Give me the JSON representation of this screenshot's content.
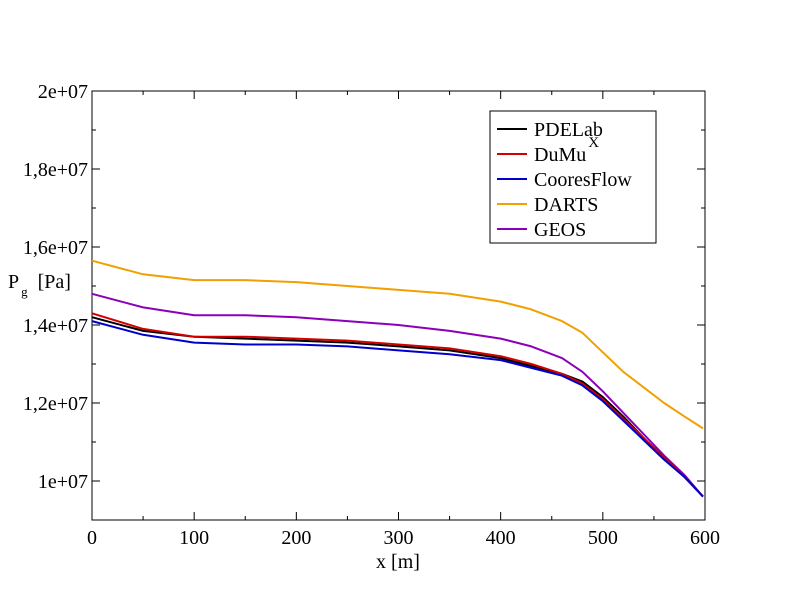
{
  "chart_data": {
    "type": "line",
    "xlabel": "x [m]",
    "ylabel": {
      "main": "P",
      "sub": "g",
      "unit": "[Pa]"
    },
    "xlim": [
      0,
      600
    ],
    "ylim": [
      9000000,
      20000000
    ],
    "xticks": [
      0,
      100,
      200,
      300,
      400,
      500,
      600
    ],
    "xtick_labels": [
      "0",
      "100",
      "200",
      "300",
      "400",
      "500",
      "600"
    ],
    "yticks": [
      10000000,
      12000000,
      14000000,
      16000000,
      18000000,
      20000000
    ],
    "ytick_labels": [
      "1e+07",
      "1,2e+07",
      "1,4e+07",
      "1,6e+07",
      "1,8e+07",
      "2e+07"
    ],
    "grid": false,
    "legend_position": "top-right",
    "series": [
      {
        "name": "PDELab",
        "name_sup": "",
        "color": "#000000",
        "x": [
          0,
          50,
          100,
          150,
          200,
          250,
          300,
          350,
          400,
          430,
          460,
          480,
          500,
          520,
          540,
          560,
          580,
          598
        ],
        "y": [
          14200000,
          13850000,
          13700000,
          13650000,
          13600000,
          13550000,
          13450000,
          13350000,
          13150000,
          12950000,
          12750000,
          12550000,
          12150000,
          11650000,
          11100000,
          10600000,
          10100000,
          9600000
        ]
      },
      {
        "name": "DuMu",
        "name_sup": "X",
        "color": "#d40000",
        "x": [
          0,
          50,
          100,
          150,
          200,
          250,
          300,
          350,
          400,
          430,
          460,
          480,
          500,
          520,
          540,
          560,
          580,
          598
        ],
        "y": [
          14300000,
          13900000,
          13700000,
          13700000,
          13650000,
          13600000,
          13500000,
          13400000,
          13200000,
          13000000,
          12750000,
          12500000,
          12100000,
          11600000,
          11100000,
          10600000,
          10100000,
          9600000
        ]
      },
      {
        "name": "CooresFlow",
        "name_sup": "",
        "color": "#0000cc",
        "x": [
          0,
          50,
          100,
          150,
          200,
          250,
          300,
          350,
          400,
          430,
          460,
          480,
          500,
          520,
          540,
          560,
          580,
          598
        ],
        "y": [
          14100000,
          13750000,
          13550000,
          13500000,
          13500000,
          13450000,
          13350000,
          13250000,
          13100000,
          12900000,
          12700000,
          12450000,
          12050000,
          11550000,
          11050000,
          10550000,
          10100000,
          9600000
        ]
      },
      {
        "name": "DARTS",
        "name_sup": "",
        "color": "#f0a000",
        "x": [
          0,
          50,
          100,
          150,
          200,
          250,
          300,
          350,
          400,
          430,
          460,
          480,
          500,
          520,
          540,
          560,
          580,
          598
        ],
        "y": [
          15650000,
          15300000,
          15150000,
          15150000,
          15100000,
          15000000,
          14900000,
          14800000,
          14600000,
          14400000,
          14100000,
          13800000,
          13300000,
          12800000,
          12400000,
          12000000,
          11650000,
          11350000
        ]
      },
      {
        "name": "GEOS",
        "name_sup": "",
        "color": "#8b00b8",
        "x": [
          0,
          50,
          100,
          150,
          200,
          250,
          300,
          350,
          400,
          430,
          460,
          480,
          500,
          520,
          540,
          560,
          580,
          598
        ],
        "y": [
          14800000,
          14450000,
          14250000,
          14250000,
          14200000,
          14100000,
          14000000,
          13850000,
          13650000,
          13450000,
          13150000,
          12800000,
          12300000,
          11750000,
          11200000,
          10650000,
          10150000,
          9600000
        ]
      }
    ]
  }
}
